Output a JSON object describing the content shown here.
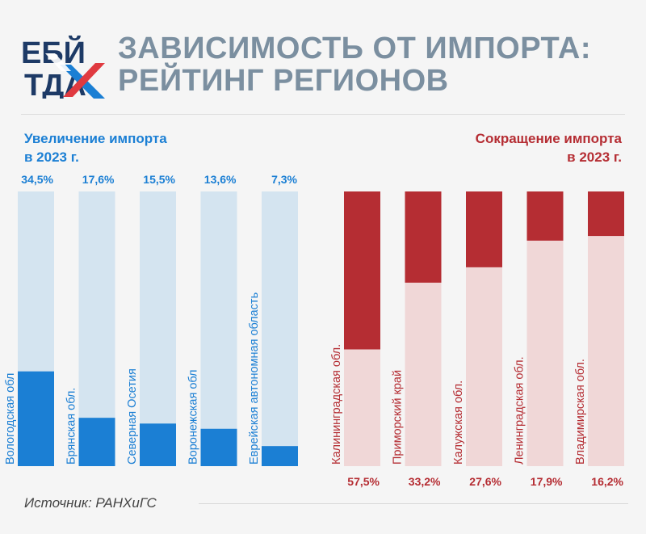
{
  "logo": {
    "line1": "ЕБЙ",
    "line2": "ТДА",
    "icon": "x-arrows-logo"
  },
  "title": {
    "line1": "ЗАВИСИМОСТЬ ОТ ИМПОРТА:",
    "line2": "РЕЙТИНГ РЕГИОНОВ"
  },
  "left_section": {
    "line1": "Увеличение импорта",
    "line2": "в 2023 г."
  },
  "right_section": {
    "line1": "Сокращение импорта",
    "line2": "в 2023 г."
  },
  "source": "Источник: РАНХиГС",
  "colors": {
    "increase": "#1b7fd4",
    "increase_track": "#d4e4f0",
    "decrease": "#b52d33",
    "decrease_track": "#f0d7d7",
    "title": "#7b8fa0"
  },
  "chart_data": [
    {
      "type": "bar",
      "title": "Увеличение импорта в 2023 г.",
      "categories": [
        "Вологодская обл",
        "Брянская обл.",
        "Северная Осетия",
        "Воронежская обл",
        "Еврейская автономная область"
      ],
      "values": [
        34.5,
        17.6,
        15.5,
        13.6,
        7.3
      ],
      "labels": [
        "34,5%",
        "17,6%",
        "15,5%",
        "13,6%",
        "7,3%"
      ],
      "ylim": [
        0,
        100
      ],
      "direction": "up"
    },
    {
      "type": "bar",
      "title": "Сокращение импорта в 2023 г.",
      "categories": [
        "Калининградская обл.",
        "Приморский край",
        "Калужская обл.",
        "Ленинградская обл.",
        "Владимирская обл."
      ],
      "values": [
        57.5,
        33.2,
        27.6,
        17.9,
        16.2
      ],
      "labels": [
        "57,5%",
        "33,2%",
        "27,6%",
        "17,9%",
        "16,2%"
      ],
      "ylim": [
        0,
        100
      ],
      "direction": "down"
    }
  ]
}
